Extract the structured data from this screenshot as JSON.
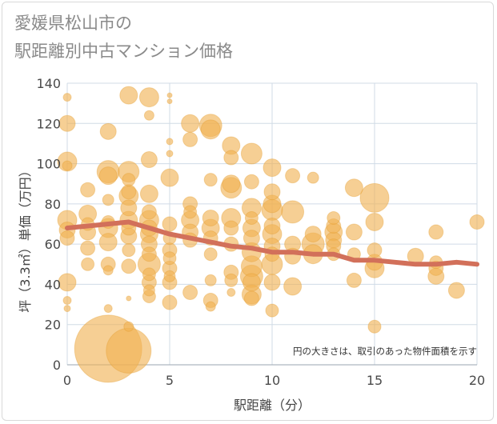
{
  "chart_data": {
    "type": "scatter",
    "title_lines": [
      "愛媛県松山市の",
      "駅距離別中古マンション価格"
    ],
    "xlabel": "駅距離（分）",
    "ylabel": "坪（3.3㎡）単価（万円）",
    "xlim": [
      0,
      20
    ],
    "ylim": [
      0,
      140
    ],
    "x_ticks": [
      0,
      5,
      10,
      15,
      20
    ],
    "y_ticks": [
      0,
      20,
      40,
      60,
      80,
      100,
      120,
      140
    ],
    "note": "円の大きさは、取引のあった物件面積を示す",
    "grid": true,
    "colors": {
      "bubble": "#f0b253",
      "bubble_edge": "#e29a2c",
      "trend": "#d2705a",
      "grid": "#d0dbe6"
    },
    "points": [
      {
        "x": 0,
        "y": 133,
        "s": 5
      },
      {
        "x": 0,
        "y": 120,
        "s": 10
      },
      {
        "x": 0,
        "y": 101,
        "s": 12
      },
      {
        "x": 0,
        "y": 99,
        "s": 6
      },
      {
        "x": 0,
        "y": 72,
        "s": 12
      },
      {
        "x": 0,
        "y": 67,
        "s": 10
      },
      {
        "x": 0,
        "y": 63,
        "s": 9
      },
      {
        "x": 0,
        "y": 41,
        "s": 11
      },
      {
        "x": 0,
        "y": 32,
        "s": 5
      },
      {
        "x": 0,
        "y": 28,
        "s": 4
      },
      {
        "x": 1,
        "y": 87,
        "s": 9
      },
      {
        "x": 1,
        "y": 75,
        "s": 11
      },
      {
        "x": 1,
        "y": 70,
        "s": 8
      },
      {
        "x": 1,
        "y": 66,
        "s": 10
      },
      {
        "x": 1,
        "y": 58,
        "s": 9
      },
      {
        "x": 1,
        "y": 50,
        "s": 8
      },
      {
        "x": 2,
        "y": 116,
        "s": 10
      },
      {
        "x": 2,
        "y": 96,
        "s": 14
      },
      {
        "x": 2,
        "y": 94,
        "s": 11
      },
      {
        "x": 2,
        "y": 82,
        "s": 7
      },
      {
        "x": 2,
        "y": 71,
        "s": 8
      },
      {
        "x": 2,
        "y": 68,
        "s": 12
      },
      {
        "x": 2,
        "y": 61,
        "s": 11
      },
      {
        "x": 2,
        "y": 50,
        "s": 9
      },
      {
        "x": 2,
        "y": 47,
        "s": 6
      },
      {
        "x": 2,
        "y": 28,
        "s": 5
      },
      {
        "x": 2,
        "y": 8,
        "s": 42
      },
      {
        "x": 3,
        "y": 134,
        "s": 11
      },
      {
        "x": 3,
        "y": 96,
        "s": 13
      },
      {
        "x": 3,
        "y": 92,
        "s": 8
      },
      {
        "x": 3,
        "y": 86,
        "s": 9
      },
      {
        "x": 3,
        "y": 84,
        "s": 12
      },
      {
        "x": 3,
        "y": 78,
        "s": 10
      },
      {
        "x": 3,
        "y": 72,
        "s": 11
      },
      {
        "x": 3,
        "y": 68,
        "s": 9
      },
      {
        "x": 3,
        "y": 64,
        "s": 10
      },
      {
        "x": 3,
        "y": 57,
        "s": 8
      },
      {
        "x": 3,
        "y": 49,
        "s": 9
      },
      {
        "x": 3,
        "y": 33,
        "s": 3
      },
      {
        "x": 3,
        "y": 19,
        "s": 6
      },
      {
        "x": 3,
        "y": 7,
        "s": 28
      },
      {
        "x": 4,
        "y": 133,
        "s": 12
      },
      {
        "x": 4,
        "y": 124,
        "s": 6
      },
      {
        "x": 4,
        "y": 102,
        "s": 10
      },
      {
        "x": 4,
        "y": 85,
        "s": 11
      },
      {
        "x": 4,
        "y": 76,
        "s": 9
      },
      {
        "x": 4,
        "y": 72,
        "s": 12
      },
      {
        "x": 4,
        "y": 68,
        "s": 10
      },
      {
        "x": 4,
        "y": 65,
        "s": 11
      },
      {
        "x": 4,
        "y": 60,
        "s": 10
      },
      {
        "x": 4,
        "y": 55,
        "s": 9
      },
      {
        "x": 4,
        "y": 50,
        "s": 14
      },
      {
        "x": 4,
        "y": 45,
        "s": 8
      },
      {
        "x": 4,
        "y": 41,
        "s": 9
      },
      {
        "x": 4,
        "y": 37,
        "s": 7
      },
      {
        "x": 4,
        "y": 34,
        "s": 8
      },
      {
        "x": 5,
        "y": 134,
        "s": 3
      },
      {
        "x": 5,
        "y": 131,
        "s": 3
      },
      {
        "x": 5,
        "y": 111,
        "s": 4
      },
      {
        "x": 5,
        "y": 105,
        "s": 4
      },
      {
        "x": 5,
        "y": 93,
        "s": 11
      },
      {
        "x": 5,
        "y": 70,
        "s": 9
      },
      {
        "x": 5,
        "y": 63,
        "s": 8
      },
      {
        "x": 5,
        "y": 57,
        "s": 9
      },
      {
        "x": 5,
        "y": 53,
        "s": 8
      },
      {
        "x": 5,
        "y": 48,
        "s": 9
      },
      {
        "x": 5,
        "y": 44,
        "s": 7
      },
      {
        "x": 5,
        "y": 41,
        "s": 9
      },
      {
        "x": 5,
        "y": 31,
        "s": 9
      },
      {
        "x": 6,
        "y": 120,
        "s": 11
      },
      {
        "x": 6,
        "y": 112,
        "s": 9
      },
      {
        "x": 6,
        "y": 80,
        "s": 9
      },
      {
        "x": 6,
        "y": 76,
        "s": 8
      },
      {
        "x": 6,
        "y": 72,
        "s": 11
      },
      {
        "x": 6,
        "y": 66,
        "s": 10
      },
      {
        "x": 6,
        "y": 62,
        "s": 9
      },
      {
        "x": 6,
        "y": 36,
        "s": 9
      },
      {
        "x": 7,
        "y": 119,
        "s": 14
      },
      {
        "x": 7,
        "y": 117,
        "s": 12
      },
      {
        "x": 7,
        "y": 92,
        "s": 8
      },
      {
        "x": 7,
        "y": 73,
        "s": 10
      },
      {
        "x": 7,
        "y": 68,
        "s": 11
      },
      {
        "x": 7,
        "y": 63,
        "s": 9
      },
      {
        "x": 7,
        "y": 55,
        "s": 8
      },
      {
        "x": 7,
        "y": 42,
        "s": 7
      },
      {
        "x": 7,
        "y": 32,
        "s": 9
      },
      {
        "x": 7,
        "y": 29,
        "s": 6
      },
      {
        "x": 8,
        "y": 109,
        "s": 11
      },
      {
        "x": 8,
        "y": 103,
        "s": 9
      },
      {
        "x": 8,
        "y": 90,
        "s": 11
      },
      {
        "x": 8,
        "y": 88,
        "s": 13
      },
      {
        "x": 8,
        "y": 73,
        "s": 12
      },
      {
        "x": 8,
        "y": 68,
        "s": 9
      },
      {
        "x": 8,
        "y": 60,
        "s": 9
      },
      {
        "x": 8,
        "y": 46,
        "s": 9
      },
      {
        "x": 8,
        "y": 42,
        "s": 8
      },
      {
        "x": 8,
        "y": 36,
        "s": 5
      },
      {
        "x": 9,
        "y": 105,
        "s": 13
      },
      {
        "x": 9,
        "y": 91,
        "s": 9
      },
      {
        "x": 9,
        "y": 78,
        "s": 12
      },
      {
        "x": 9,
        "y": 73,
        "s": 8
      },
      {
        "x": 9,
        "y": 68,
        "s": 11
      },
      {
        "x": 9,
        "y": 63,
        "s": 10
      },
      {
        "x": 9,
        "y": 56,
        "s": 12
      },
      {
        "x": 9,
        "y": 49,
        "s": 13
      },
      {
        "x": 9,
        "y": 44,
        "s": 14
      },
      {
        "x": 9,
        "y": 41,
        "s": 11
      },
      {
        "x": 9,
        "y": 35,
        "s": 12
      },
      {
        "x": 9,
        "y": 33,
        "s": 9
      },
      {
        "x": 10,
        "y": 98,
        "s": 11
      },
      {
        "x": 10,
        "y": 86,
        "s": 10
      },
      {
        "x": 10,
        "y": 80,
        "s": 11
      },
      {
        "x": 10,
        "y": 77,
        "s": 13
      },
      {
        "x": 10,
        "y": 69,
        "s": 10
      },
      {
        "x": 10,
        "y": 65,
        "s": 12
      },
      {
        "x": 10,
        "y": 59,
        "s": 10
      },
      {
        "x": 10,
        "y": 55,
        "s": 9
      },
      {
        "x": 10,
        "y": 50,
        "s": 13
      },
      {
        "x": 10,
        "y": 41,
        "s": 10
      },
      {
        "x": 10,
        "y": 27,
        "s": 8
      },
      {
        "x": 11,
        "y": 94,
        "s": 9
      },
      {
        "x": 11,
        "y": 76,
        "s": 14
      },
      {
        "x": 11,
        "y": 60,
        "s": 10
      },
      {
        "x": 11,
        "y": 54,
        "s": 10
      },
      {
        "x": 11,
        "y": 39,
        "s": 11
      },
      {
        "x": 12,
        "y": 93,
        "s": 7
      },
      {
        "x": 12,
        "y": 65,
        "s": 10
      },
      {
        "x": 12,
        "y": 60,
        "s": 14
      },
      {
        "x": 12,
        "y": 55,
        "s": 12
      },
      {
        "x": 13,
        "y": 73,
        "s": 8
      },
      {
        "x": 13,
        "y": 69,
        "s": 9
      },
      {
        "x": 13,
        "y": 66,
        "s": 11
      },
      {
        "x": 13,
        "y": 62,
        "s": 10
      },
      {
        "x": 13,
        "y": 59,
        "s": 9
      },
      {
        "x": 13,
        "y": 55,
        "s": 8
      },
      {
        "x": 14,
        "y": 88,
        "s": 11
      },
      {
        "x": 14,
        "y": 66,
        "s": 10
      },
      {
        "x": 14,
        "y": 55,
        "s": 8
      },
      {
        "x": 14,
        "y": 42,
        "s": 9
      },
      {
        "x": 15,
        "y": 83,
        "s": 18
      },
      {
        "x": 15,
        "y": 71,
        "s": 11
      },
      {
        "x": 15,
        "y": 57,
        "s": 9
      },
      {
        "x": 15,
        "y": 51,
        "s": 10
      },
      {
        "x": 15,
        "y": 48,
        "s": 12
      },
      {
        "x": 15,
        "y": 19,
        "s": 8
      },
      {
        "x": 17,
        "y": 54,
        "s": 10
      },
      {
        "x": 18,
        "y": 66,
        "s": 9
      },
      {
        "x": 18,
        "y": 51,
        "s": 8
      },
      {
        "x": 18,
        "y": 48,
        "s": 9
      },
      {
        "x": 18,
        "y": 44,
        "s": 10
      },
      {
        "x": 19,
        "y": 37,
        "s": 10
      },
      {
        "x": 20,
        "y": 71,
        "s": 9
      }
    ],
    "trend_line": {
      "x": [
        0,
        1,
        2,
        3,
        4,
        5,
        6,
        7,
        8,
        9,
        10,
        11,
        12,
        13,
        14,
        15,
        16,
        17,
        18,
        19,
        20
      ],
      "y": [
        68,
        69,
        70,
        71,
        68,
        65,
        63,
        61,
        59,
        58,
        56,
        56,
        55,
        55,
        52,
        52,
        51,
        50,
        50,
        51,
        50
      ]
    }
  }
}
